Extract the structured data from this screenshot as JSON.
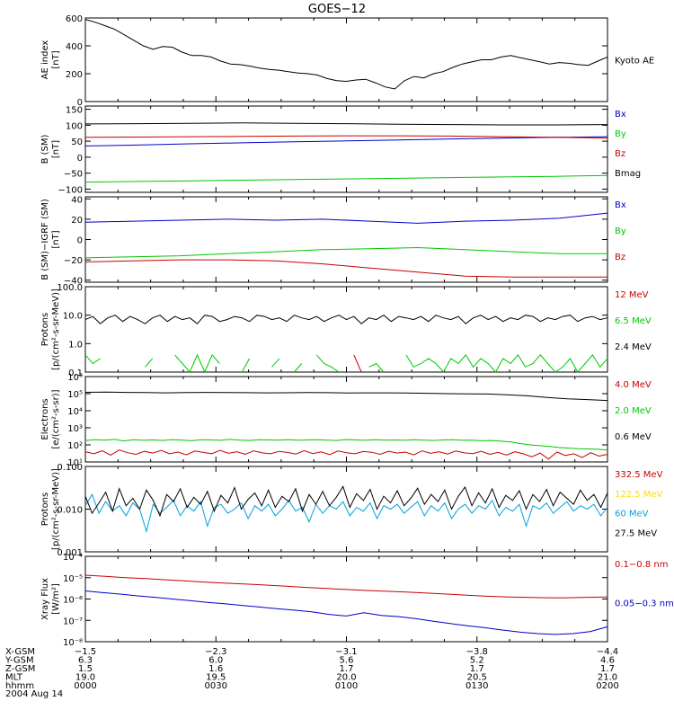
{
  "title": "GOES−12",
  "date": "2004 Aug 14",
  "colors": {
    "black": "#000000",
    "red": "#c80000",
    "green": "#00c800",
    "blue": "#0000c8",
    "yellow": "#ffdc00",
    "cyan": "#00a0dc"
  },
  "ephemeris": {
    "labels": [
      "X-GSM",
      "Y-GSM",
      "Z-GSM",
      "MLT",
      "hhmm"
    ],
    "columns": [
      [
        "−1.5",
        "6.3",
        "1.5",
        "19.0",
        "0000"
      ],
      [
        "−2.3",
        "6.0",
        "1.6",
        "19.5",
        "0030"
      ],
      [
        "−3.1",
        "5.6",
        "1.7",
        "20.0",
        "0100"
      ],
      [
        "−3.8",
        "5.2",
        "1.7",
        "20.5",
        "0130"
      ],
      [
        "−4.4",
        "4.6",
        "1.7",
        "21.0",
        "0200"
      ]
    ]
  },
  "chart_data": [
    {
      "type": "line",
      "ylabel": [
        "AE index",
        "[nT]"
      ],
      "ylim": [
        0,
        600
      ],
      "scale": "linear",
      "ticks": [
        {
          "v": 0,
          "label": "0"
        },
        {
          "v": 200,
          "label": "200"
        },
        {
          "v": 400,
          "label": "400"
        },
        {
          "v": 600,
          "label": "600"
        }
      ],
      "series": [
        {
          "name": "Kyoto AE",
          "color": "black",
          "legend_color": "black",
          "values": [
            590,
            570,
            545,
            520,
            480,
            440,
            400,
            375,
            395,
            390,
            355,
            330,
            330,
            320,
            290,
            270,
            265,
            255,
            240,
            230,
            225,
            215,
            205,
            200,
            190,
            165,
            150,
            145,
            155,
            160,
            135,
            105,
            90,
            150,
            180,
            170,
            200,
            215,
            245,
            270,
            285,
            300,
            300,
            320,
            330,
            315,
            300,
            285,
            270,
            280,
            275,
            265,
            260,
            290,
            320
          ]
        }
      ]
    },
    {
      "type": "line",
      "ylabel": [
        "B (SM)",
        "[nT]"
      ],
      "ylim": [
        -110,
        160
      ],
      "scale": "linear",
      "ticks": [
        {
          "v": 150,
          "label": "150"
        },
        {
          "v": 100,
          "label": "100"
        },
        {
          "v": 50,
          "label": "50"
        },
        {
          "v": 0,
          "label": "0"
        },
        {
          "v": -50,
          "label": "−50"
        },
        {
          "v": -100,
          "label": "−100"
        }
      ],
      "series": [
        {
          "name": "Bx",
          "color": "blue",
          "legend_color": "blue",
          "values": [
            35,
            38,
            42,
            45,
            48,
            51,
            54,
            57,
            60,
            62,
            64
          ]
        },
        {
          "name": "By",
          "color": "green",
          "legend_color": "green",
          "values": [
            -78,
            -76,
            -74,
            -72,
            -70,
            -68,
            -66,
            -64,
            -62,
            -60,
            -57
          ]
        },
        {
          "name": "Bz",
          "color": "red",
          "legend_color": "red",
          "values": [
            62,
            63,
            64,
            65,
            66,
            67,
            67,
            66,
            64,
            62,
            60
          ]
        },
        {
          "name": "Bmag",
          "color": "black",
          "legend_color": "black",
          "values": [
            104,
            105,
            106,
            107,
            106,
            105,
            103,
            102,
            101,
            101,
            102
          ]
        }
      ]
    },
    {
      "type": "line",
      "ylabel": [
        "B (SM)−IGRF (SM)",
        "[nT]"
      ],
      "ylim": [
        -42,
        42
      ],
      "scale": "linear",
      "ticks": [
        {
          "v": 40,
          "label": "40"
        },
        {
          "v": 20,
          "label": "20"
        },
        {
          "v": 0,
          "label": "0"
        },
        {
          "v": -20,
          "label": "−20"
        },
        {
          "v": -40,
          "label": "−40"
        }
      ],
      "series": [
        {
          "name": "Bx",
          "color": "blue",
          "legend_color": "blue",
          "values": [
            17,
            18,
            19,
            20,
            19,
            20,
            18,
            16,
            18,
            19,
            21,
            26
          ]
        },
        {
          "name": "By",
          "color": "green",
          "legend_color": "green",
          "values": [
            -18,
            -17,
            -16,
            -14,
            -12,
            -10,
            -9,
            -8,
            -10,
            -12,
            -14,
            -14
          ]
        },
        {
          "name": "Bz",
          "color": "red",
          "legend_color": "red",
          "values": [
            -22,
            -21,
            -20,
            -20,
            -21,
            -24,
            -28,
            -32,
            -36,
            -37,
            -37,
            -37
          ]
        }
      ]
    },
    {
      "type": "line",
      "ylabel": [
        "Protons",
        "[p/(cm²-s-sr-MeV)]"
      ],
      "ylim": [
        0.1,
        100
      ],
      "scale": "log",
      "ticks": [
        {
          "v": 0.1,
          "label": "0.1"
        },
        {
          "v": 1,
          "label": "1.0"
        },
        {
          "v": 10,
          "label": "10.0"
        },
        {
          "v": 100,
          "label": "100.0"
        }
      ],
      "series": [
        {
          "name": "12 MeV",
          "color": "red",
          "legend_color": "red",
          "values": [
            null,
            null,
            null,
            null,
            null,
            null,
            null,
            null,
            null,
            null,
            null,
            null,
            null,
            null,
            null,
            null,
            null,
            null,
            null,
            null,
            null,
            null,
            null,
            null,
            null,
            null,
            null,
            null,
            null,
            null,
            null,
            null,
            null,
            null,
            null,
            null,
            0.4,
            0.1,
            null,
            null,
            null,
            0.3,
            null,
            null,
            null,
            null,
            null,
            null,
            null,
            null,
            null,
            null,
            null,
            null,
            null,
            null,
            null,
            null,
            null,
            null,
            null,
            null,
            null,
            null,
            null,
            null,
            null,
            null,
            null,
            null,
            null
          ]
        },
        {
          "name": "6.5 MeV",
          "color": "green",
          "legend_color": "green",
          "values": [
            0.4,
            0.2,
            0.3,
            null,
            0.1,
            null,
            null,
            null,
            0.15,
            0.3,
            null,
            null,
            0.4,
            0.2,
            0.1,
            0.4,
            0.1,
            0.4,
            0.2,
            null,
            null,
            0.1,
            0.3,
            null,
            null,
            0.15,
            0.3,
            null,
            0.1,
            0.2,
            null,
            0.4,
            0.2,
            0.15,
            0.1,
            null,
            null,
            null,
            0.15,
            0.2,
            0.1,
            null,
            null,
            0.4,
            0.15,
            0.2,
            0.3,
            0.2,
            0.1,
            0.3,
            0.2,
            0.4,
            0.15,
            0.3,
            0.2,
            0.1,
            0.3,
            0.2,
            0.4,
            0.15,
            0.2,
            0.4,
            0.2,
            0.1,
            0.15,
            0.3,
            0.1,
            0.2,
            0.4,
            0.15,
            0.3
          ]
        },
        {
          "name": "2.4 MeV",
          "color": "black",
          "legend_color": "black",
          "values": [
            7,
            9,
            5,
            8,
            10,
            6,
            9,
            7,
            5,
            8,
            10,
            6,
            9,
            7,
            8,
            5,
            10,
            9,
            6,
            7,
            9,
            8,
            6,
            10,
            9,
            7,
            8,
            6,
            10,
            8,
            7,
            9,
            6,
            8,
            10,
            7,
            9,
            5,
            8,
            7,
            10,
            6,
            9,
            8,
            7,
            9,
            6,
            10,
            8,
            7,
            9,
            5,
            8,
            10,
            7,
            9,
            6,
            8,
            7,
            10,
            9,
            6,
            8,
            7,
            9,
            10,
            6,
            8,
            9,
            7,
            8
          ]
        }
      ]
    },
    {
      "type": "line",
      "ylabel": [
        "Electrons",
        "[e/(cm²-s-sr)]"
      ],
      "ylim": [
        10,
        1000000
      ],
      "scale": "log",
      "ticks": [
        {
          "v": 10,
          "label": "10¹"
        },
        {
          "v": 100,
          "label": "10²"
        },
        {
          "v": 1000,
          "label": "10³"
        },
        {
          "v": 10000,
          "label": "10⁴"
        },
        {
          "v": 100000,
          "label": "10⁵"
        },
        {
          "v": 1000000,
          "label": "10⁶"
        }
      ],
      "series": [
        {
          "name": "4.0 MeV",
          "color": "red",
          "legend_color": "red",
          "values": [
            40,
            30,
            45,
            25,
            50,
            35,
            28,
            42,
            33,
            48,
            30,
            38,
            26,
            44,
            36,
            30,
            47,
            32,
            40,
            28,
            45,
            34,
            30,
            42,
            36,
            29,
            46,
            31,
            39,
            27,
            44,
            35,
            30,
            41,
            37,
            28,
            43,
            33,
            38,
            26,
            45,
            32,
            40,
            29,
            44,
            34,
            31,
            42,
            28,
            36,
            25,
            40,
            30,
            20,
            33,
            15,
            38,
            24,
            30,
            18,
            35,
            22,
            28
          ]
        },
        {
          "name": "2.0 MeV",
          "color": "green",
          "legend_color": "green",
          "values": [
            180,
            200,
            190,
            210,
            170,
            200,
            185,
            195,
            180,
            205,
            190,
            175,
            200,
            195,
            185,
            210,
            190,
            180,
            200,
            195,
            190,
            205,
            185,
            195,
            200,
            190,
            180,
            205,
            195,
            185,
            200,
            190,
            195,
            185,
            200,
            190,
            180,
            195,
            200,
            185,
            190,
            175,
            180,
            165,
            150,
            120,
            100,
            90,
            80,
            70,
            65,
            60,
            58,
            55,
            50
          ]
        },
        {
          "name": "0.6 MeV",
          "color": "black",
          "legend_color": "black",
          "values": [
            120000,
            125000,
            118000,
            115000,
            112000,
            115000,
            118000,
            116000,
            114000,
            112000,
            113000,
            115000,
            114000,
            110000,
            112000,
            111000,
            110000,
            105000,
            100000,
            98000,
            95000,
            85000,
            75000,
            60000,
            50000,
            45000,
            40000
          ]
        }
      ]
    },
    {
      "type": "line",
      "ylabel": [
        "Protons",
        "[p/(cm²-s-sr-MeV)]"
      ],
      "ylim": [
        0.001,
        0.1
      ],
      "scale": "log",
      "ticks": [
        {
          "v": 0.001,
          "label": "0.001"
        },
        {
          "v": 0.01,
          "label": "0.010"
        },
        {
          "v": 0.1,
          "label": "0.100"
        }
      ],
      "series": [
        {
          "name": "332.5 MeV",
          "color": "red",
          "legend_color": "red",
          "values": []
        },
        {
          "name": "122.5 MeV",
          "color": "yellow",
          "legend_color": "yellow",
          "values": []
        },
        {
          "name": "60 MeV",
          "color": "cyan",
          "legend_color": "cyan",
          "values": [
            0.012,
            0.022,
            0.008,
            0.015,
            0.009,
            0.012,
            0.007,
            0.014,
            0.01,
            0.003,
            0.013,
            0.008,
            0.011,
            0.016,
            0.007,
            0.012,
            0.009,
            0.015,
            0.004,
            0.011,
            0.013,
            0.008,
            0.01,
            0.014,
            0.006,
            0.012,
            0.009,
            0.013,
            0.007,
            0.01,
            0.016,
            0.009,
            0.011,
            0.005,
            0.013,
            0.008,
            0.012,
            0.01,
            0.015,
            0.007,
            0.011,
            0.009,
            0.014,
            0.006,
            0.012,
            0.01,
            0.013,
            0.008,
            0.011,
            0.015,
            0.007,
            0.012,
            0.009,
            0.014,
            0.006,
            0.01,
            0.013,
            0.008,
            0.012,
            0.01,
            0.016,
            0.007,
            0.011,
            0.009,
            0.013,
            0.004,
            0.012,
            0.01,
            0.014,
            0.008,
            0.011,
            0.015,
            0.009,
            0.012,
            0.01,
            0.013,
            0.007,
            0.011
          ]
        },
        {
          "name": "27.5 MeV",
          "color": "black",
          "legend_color": "black",
          "values": [
            0.02,
            0.008,
            0.014,
            0.025,
            0.009,
            0.03,
            0.012,
            0.018,
            0.01,
            0.028,
            0.016,
            0.007,
            0.022,
            0.015,
            0.03,
            0.011,
            0.019,
            0.013,
            0.026,
            0.009,
            0.021,
            0.014,
            0.032,
            0.01,
            0.017,
            0.024,
            0.012,
            0.028,
            0.011,
            0.02,
            0.015,
            0.03,
            0.009,
            0.022,
            0.013,
            0.026,
            0.012,
            0.019,
            0.034,
            0.011,
            0.023,
            0.016,
            0.029,
            0.01,
            0.02,
            0.014,
            0.027,
            0.012,
            0.018,
            0.031,
            0.013,
            0.022,
            0.015,
            0.028,
            0.01,
            0.02,
            0.033,
            0.012,
            0.024,
            0.014,
            0.03,
            0.011,
            0.021,
            0.016,
            0.027,
            0.01,
            0.022,
            0.015,
            0.029,
            0.012,
            0.025,
            0.018,
            0.013,
            0.028,
            0.016,
            0.022,
            0.011,
            0.024
          ]
        }
      ]
    },
    {
      "type": "line",
      "ylabel": [
        "Xray Flux",
        "[W/m²]"
      ],
      "ylim": [
        1e-08,
        0.0001
      ],
      "scale": "log",
      "ticks": [
        {
          "v": 1e-08,
          "label": "10⁻⁸"
        },
        {
          "v": 1e-07,
          "label": "10⁻⁷"
        },
        {
          "v": 1e-06,
          "label": "10⁻⁶"
        },
        {
          "v": 1e-05,
          "label": "10⁻⁵"
        },
        {
          "v": 0.0001,
          "label": "10⁻⁴"
        }
      ],
      "series": [
        {
          "name": "0.1−0.8 nm",
          "color": "red",
          "legend_color": "red",
          "values": [
            1.3e-05,
            1.15e-05,
            1e-05,
            9e-06,
            8e-06,
            7e-06,
            6.2e-06,
            5.5e-06,
            5e-06,
            4.5e-06,
            4e-06,
            3.5e-06,
            3.1e-06,
            2.8e-06,
            2.5e-06,
            2.3e-06,
            2.1e-06,
            1.9e-06,
            1.7e-06,
            1.5e-06,
            1.35e-06,
            1.25e-06,
            1.2e-06,
            1.15e-06,
            1.15e-06,
            1.2e-06,
            1.25e-06
          ]
        },
        {
          "name": "0.05−0.3 nm",
          "color": "blue",
          "legend_color": "blue",
          "values": [
            2.4e-06,
            2e-06,
            1.7e-06,
            1.4e-06,
            1.2e-06,
            1e-06,
            8.5e-07,
            7e-07,
            6e-07,
            5e-07,
            4.2e-07,
            3.5e-07,
            3e-07,
            2.5e-07,
            1.9e-07,
            1.6e-07,
            2.3e-07,
            1.7e-07,
            1.5e-07,
            1.2e-07,
            9e-08,
            7e-08,
            5.5e-08,
            4.5e-08,
            3.5e-08,
            2.8e-08,
            2.4e-08,
            2.2e-08,
            2.4e-08,
            3e-08,
            5e-08
          ]
        }
      ]
    }
  ]
}
